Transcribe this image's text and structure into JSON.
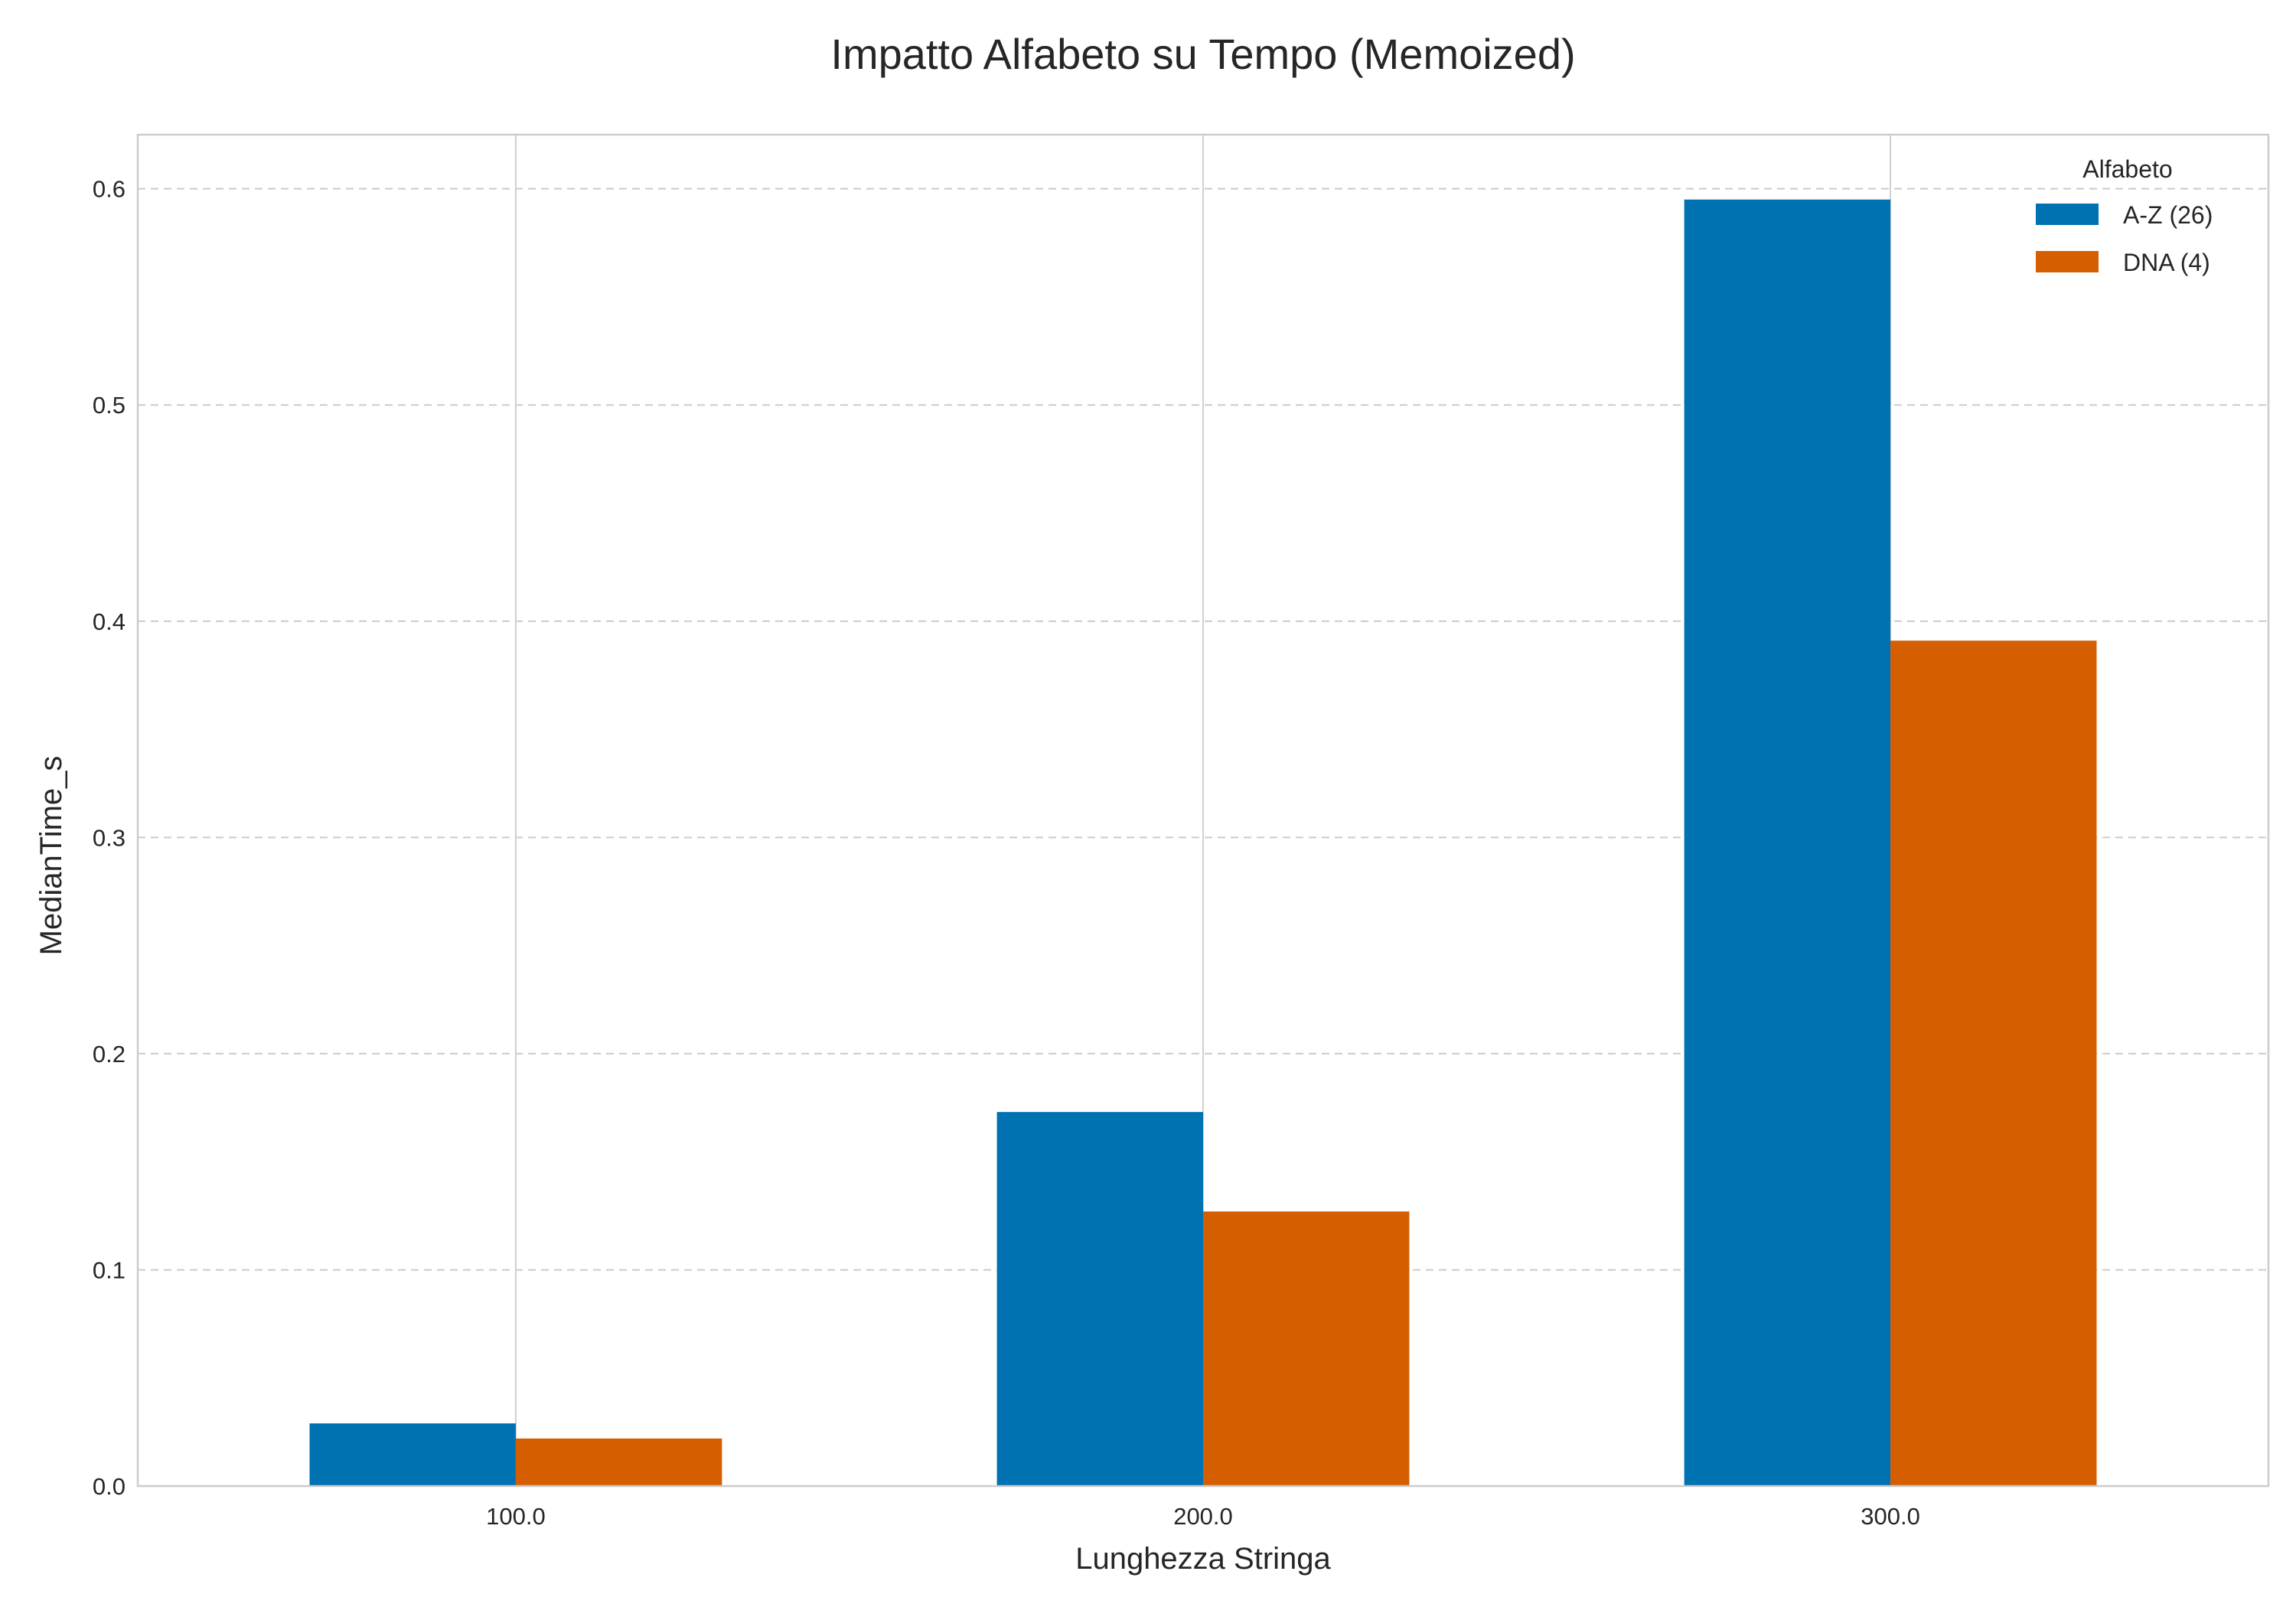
{
  "chart_data": {
    "type": "bar",
    "title": "Impatto Alfabeto su Tempo (Memoized)",
    "xlabel": "Lunghezza Stringa",
    "ylabel": "MedianTime_s",
    "categories": [
      "100.0",
      "200.0",
      "300.0"
    ],
    "series": [
      {
        "name": "A-Z (26)",
        "color": "#0072b2",
        "values": [
          0.029,
          0.173,
          0.595
        ]
      },
      {
        "name": "DNA (4)",
        "color": "#d55e00",
        "values": [
          0.022,
          0.127,
          0.391
        ]
      }
    ],
    "ylim": [
      0,
      0.625
    ],
    "yticks": [
      0.0,
      0.1,
      0.2,
      0.3,
      0.4,
      0.5,
      0.6
    ],
    "ytick_labels": [
      "0.0",
      "0.1",
      "0.2",
      "0.3",
      "0.4",
      "0.5",
      "0.6"
    ],
    "grid": {
      "horizontal": "dashed",
      "vertical": "solid"
    },
    "legend": {
      "title": "Alfabeto",
      "placement": "top-right"
    }
  }
}
